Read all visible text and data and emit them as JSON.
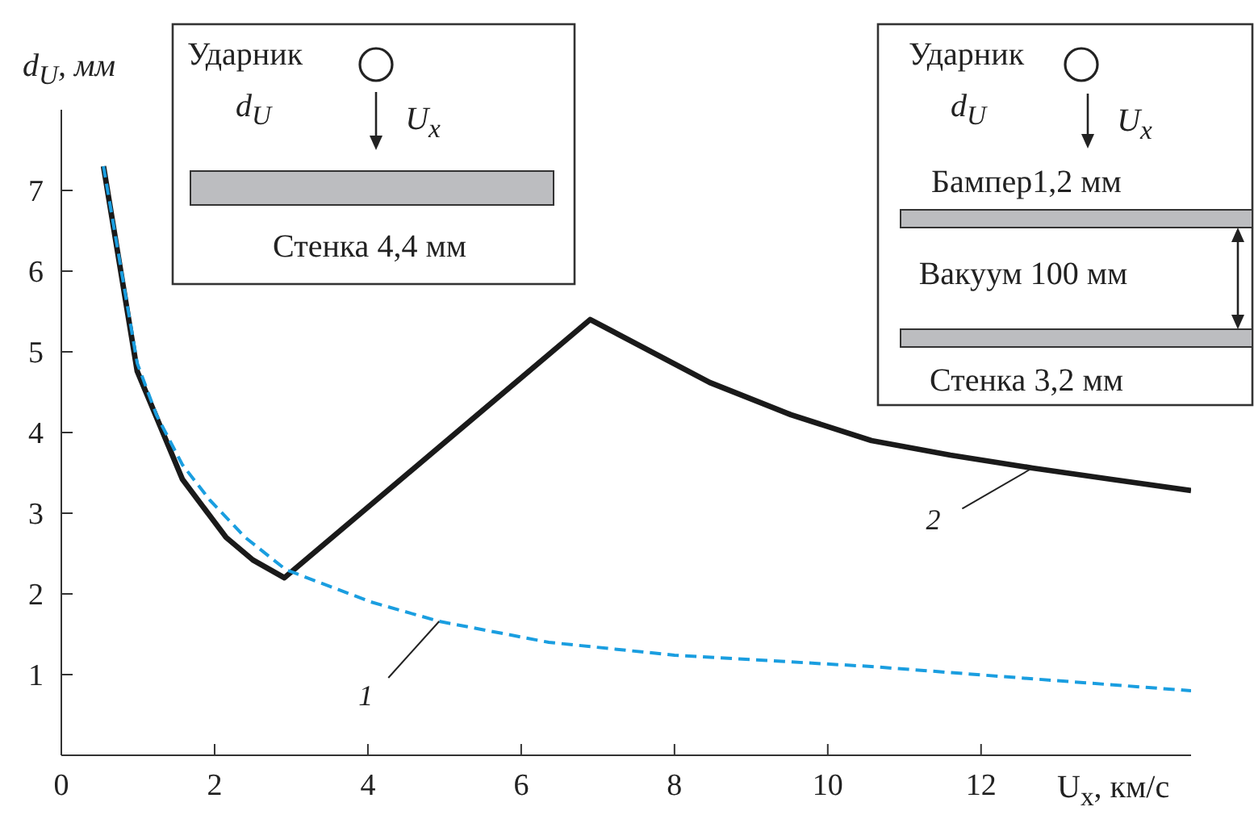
{
  "chart_data": {
    "type": "line",
    "xlabel": "U$_{x}$, км/с",
    "ylabel": "d$_{U}$, мм",
    "xlim": [
      0,
      14.74
    ],
    "xticks": [
      0,
      2,
      4,
      6,
      8,
      10,
      12
    ],
    "ylim": [
      0,
      8
    ],
    "yticks": [
      1,
      2,
      3,
      4,
      5,
      6,
      7
    ],
    "marker": "none",
    "series": [
      {
        "color": "#1a9ee0",
        "line_style": "dashed",
        "x": [
          0.55,
          0.99,
          1.24,
          1.58,
          1.94,
          2.4,
          2.93,
          4.04,
          4.93,
          6.36,
          8,
          10.57,
          12.5,
          14.74
        ],
        "values": [
          7.3,
          4.86,
          4.22,
          3.6,
          3.16,
          2.7,
          2.3,
          1.9,
          1.66,
          1.4,
          1.24,
          1.1,
          0.96,
          0.8
        ]
      },
      {
        "color": "#1a1a1a",
        "line_style": "solid",
        "x": [
          0.55,
          0.99,
          1.58,
          2.15,
          2.5,
          2.91,
          6.9,
          8.46,
          9.52,
          10.57,
          11.6,
          12.67,
          13.7,
          14.74
        ],
        "values": [
          7.3,
          4.76,
          3.42,
          2.7,
          2.42,
          2.2,
          5.4,
          4.62,
          4.22,
          3.9,
          3.72,
          3.56,
          3.42,
          3.28
        ]
      }
    ],
    "annotations": [
      "Ударник",
      "d$_{U}$",
      "U$_{x}$",
      "Стенка 4,4 мм",
      "Ударник",
      "d$_{U}$",
      "U$_{x}$",
      "Бампер1,2 мм",
      "Вакуум 100 мм",
      "Стенка 3,2 мм",
      {
        "text": "1",
        "x": 4.93,
        "y": 1.66
      },
      {
        "text": "2",
        "x": 12.67,
        "y": 3.56
      }
    ]
  }
}
